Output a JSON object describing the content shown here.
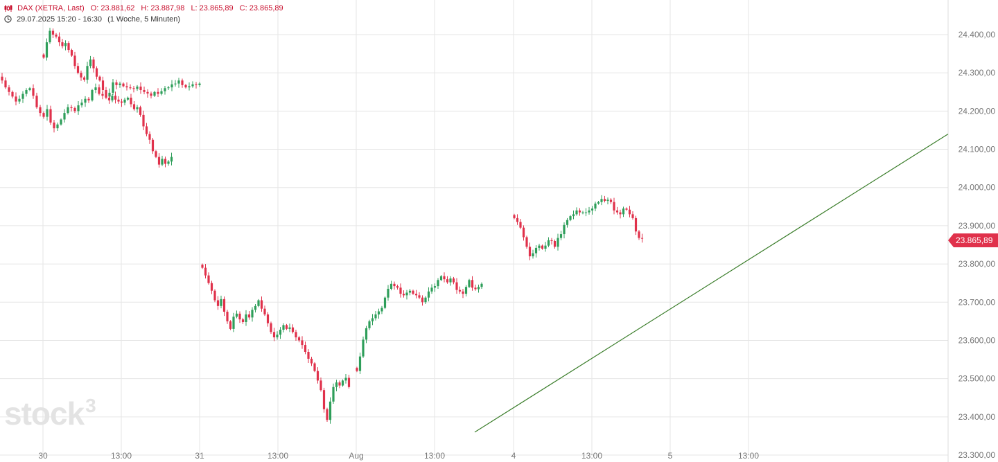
{
  "header": {
    "title": "DAX (XETRA, Last)",
    "open": "O: 23.881,62",
    "high": "H: 23.887,98",
    "low": "L: 23.865,89",
    "close": "C: 23.865,89",
    "period": "29.07.2025 15:20 - 16:30",
    "range": "(1 Woche, 5 Minuten)"
  },
  "logo": {
    "text": "stock",
    "superscript": "3"
  },
  "last_price_label": "23.865,89",
  "colors": {
    "up": "#2e9e5a",
    "down": "#e0314b",
    "trendline": "#3a7d2a",
    "grid": "#e6e6e6"
  },
  "chart_data": {
    "type": "candlestick",
    "ylim": [
      23300,
      24450
    ],
    "y_ticks": [
      "24.400,00",
      "24.300,00",
      "24.200,00",
      "24.100,00",
      "24.000,00",
      "23.900,00",
      "23.800,00",
      "23.700,00",
      "23.600,00",
      "23.500,00",
      "23.400,00",
      "23.300,00"
    ],
    "x_ticks": [
      "30",
      "13:00",
      "31",
      "13:00",
      "Aug",
      "13:00",
      "4",
      "13:00",
      "5",
      "13:00"
    ],
    "sessions": [
      {
        "day": "29",
        "closes": [
          24290,
          24280,
          24262,
          24250,
          24238,
          24225,
          24232,
          24245,
          24255,
          24260,
          24240,
          24210,
          24195,
          24185,
          24205,
          24170,
          24155,
          24165,
          24178,
          24195,
          24210,
          24208,
          24200,
          24215,
          24222,
          24232,
          24228,
          24255,
          24262,
          24245,
          24240,
          24238,
          24248,
          24275,
          24268,
          24272,
          24265,
          24262,
          24260,
          24258,
          24264,
          24255,
          24250,
          24246,
          24240,
          24250,
          24245,
          24252,
          24260,
          24262,
          24270,
          24272,
          24280,
          24268,
          24262,
          24265,
          24270,
          24268,
          24272
        ]
      },
      {
        "day": "30",
        "closes": [
          24340,
          24380,
          24410,
          24400,
          24395,
          24380,
          24370,
          24378,
          24360,
          24345,
          24318,
          24300,
          24288,
          24282,
          24318,
          24335,
          24312,
          24290,
          24280,
          24255,
          24235,
          24228,
          24240,
          24230,
          24225,
          24222,
          24230,
          24235,
          24218,
          24205,
          24210,
          24190,
          24160,
          24140,
          24125,
          24095,
          24080,
          24060,
          24075,
          24062,
          24068,
          24080
        ]
      },
      {
        "day": "31",
        "closes": [
          23790,
          23770,
          23750,
          23730,
          23705,
          23690,
          23708,
          23675,
          23650,
          23630,
          23662,
          23670,
          23655,
          23648,
          23668,
          23660,
          23680,
          23690,
          23705,
          23683,
          23668,
          23645,
          23622,
          23608,
          23615,
          23628,
          23640,
          23630,
          23634,
          23622,
          23608,
          23600,
          23588,
          23570,
          23552,
          23540,
          23520,
          23495,
          23470,
          23420,
          23392,
          23440,
          23478,
          23490,
          23482,
          23495,
          23502,
          23478
        ]
      },
      {
        "day": "Aug",
        "closes": [
          23520,
          23558,
          23602,
          23632,
          23650,
          23658,
          23668,
          23676,
          23685,
          23712,
          23735,
          23748,
          23742,
          23738,
          23722,
          23718,
          23725,
          23730,
          23722,
          23718,
          23712,
          23700,
          23712,
          23728,
          23738,
          23742,
          23758,
          23768,
          23760,
          23752,
          23762,
          23752,
          23732,
          23728,
          23722,
          23740,
          23758,
          23738,
          23734,
          23740,
          23748
        ]
      },
      {
        "day": "4",
        "closes": [
          23920,
          23910,
          23895,
          23870,
          23845,
          23820,
          23828,
          23842,
          23848,
          23840,
          23848,
          23862,
          23860,
          23845,
          23868,
          23878,
          23902,
          23915,
          23925,
          23930,
          23940,
          23935,
          23935,
          23935,
          23940,
          23945,
          23958,
          23962,
          23970,
          23965,
          23968,
          23962,
          23940,
          23935,
          23930,
          23945,
          23942,
          23930,
          23920,
          23885,
          23868,
          23866
        ]
      }
    ],
    "trendline": {
      "from": {
        "session": 2,
        "index": 38,
        "value": 23360
      },
      "to": {
        "value": 24140
      }
    }
  }
}
